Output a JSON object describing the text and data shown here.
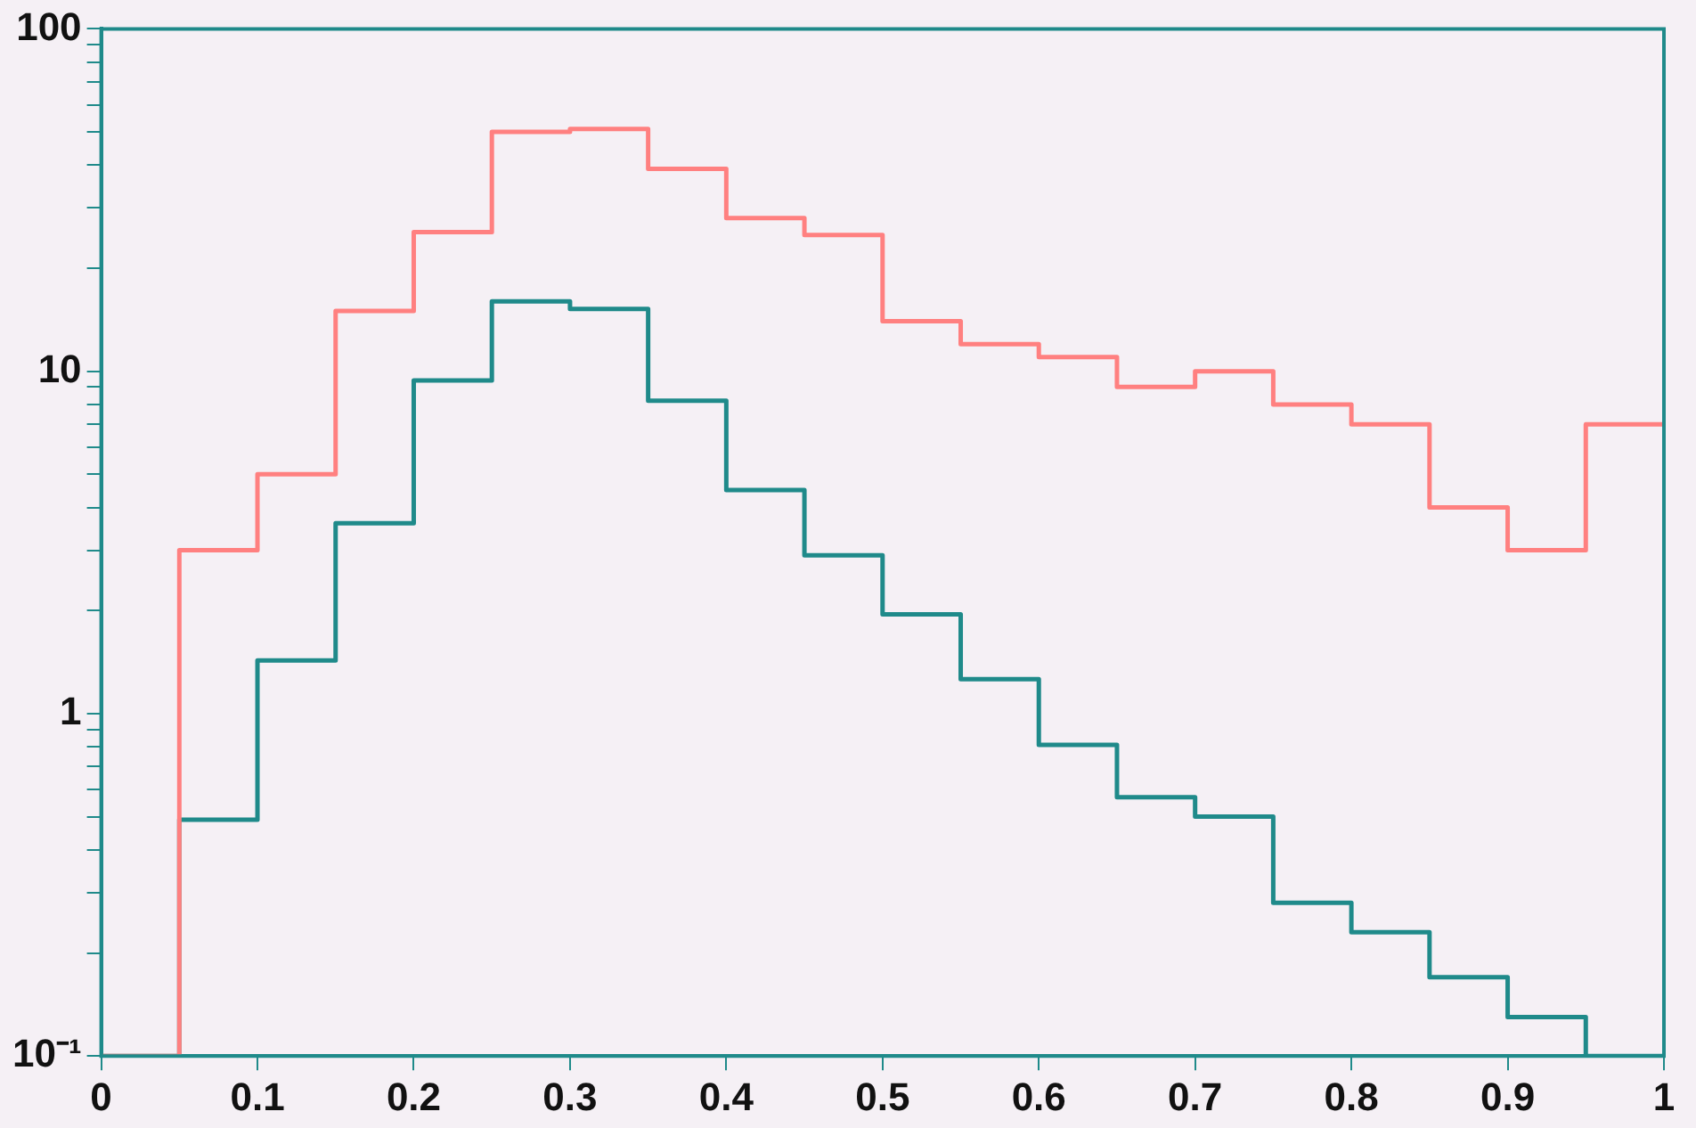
{
  "chart_data": {
    "type": "histogram",
    "log": "y",
    "grid": false,
    "legend": false,
    "bins": [
      0,
      0.05,
      0.1,
      0.15,
      0.2,
      0.25,
      0.3,
      0.35,
      0.4,
      0.45,
      0.5,
      0.55,
      0.6,
      0.65,
      0.7,
      0.75,
      0.8,
      0.85,
      0.9,
      0.95,
      1
    ],
    "series": [
      {
        "color": "#ff8080",
        "values": [
          null,
          3,
          5,
          15,
          25.5,
          50,
          51,
          39,
          28,
          25,
          14,
          12,
          11,
          9,
          10,
          8,
          7,
          4,
          3,
          7
        ]
      },
      {
        "color": "#1f8a8a",
        "values": [
          null,
          0.49,
          1.43,
          3.6,
          9.4,
          16,
          15.2,
          8.2,
          4.5,
          2.9,
          1.95,
          1.26,
          0.81,
          0.57,
          0.5,
          0.28,
          0.23,
          0.17,
          0.13,
          null
        ]
      }
    ],
    "xlim": [
      0,
      1
    ],
    "xticks": [
      0,
      0.1,
      0.2,
      0.3,
      0.4,
      0.5,
      0.6,
      0.7,
      0.8,
      0.9,
      1
    ],
    "ylim": [
      0.1,
      100
    ],
    "yticks": [
      {
        "value": 0.1,
        "label": "10⁻¹"
      },
      {
        "value": 0.2,
        "label": null
      },
      {
        "value": 0.3,
        "label": null
      },
      {
        "value": 0.4,
        "label": null
      },
      {
        "value": 0.5,
        "label": null
      },
      {
        "value": 0.6,
        "label": null
      },
      {
        "value": 0.7,
        "label": null
      },
      {
        "value": 0.8,
        "label": null
      },
      {
        "value": 0.9,
        "label": null
      },
      1,
      {
        "value": 2,
        "label": null
      },
      {
        "value": 3,
        "label": null
      },
      {
        "value": 4,
        "label": null
      },
      {
        "value": 5,
        "label": null
      },
      {
        "value": 6,
        "label": null
      },
      {
        "value": 7,
        "label": null
      },
      {
        "value": 8,
        "label": null
      },
      {
        "value": 9,
        "label": null
      },
      10,
      {
        "value": 20,
        "label": null
      },
      {
        "value": 30,
        "label": null
      },
      {
        "value": 40,
        "label": null
      },
      {
        "value": 50,
        "label": null
      },
      {
        "value": 60,
        "label": null
      },
      {
        "value": 70,
        "label": null
      },
      {
        "value": 80,
        "label": null
      },
      {
        "value": 90,
        "label": null
      },
      100
    ]
  }
}
